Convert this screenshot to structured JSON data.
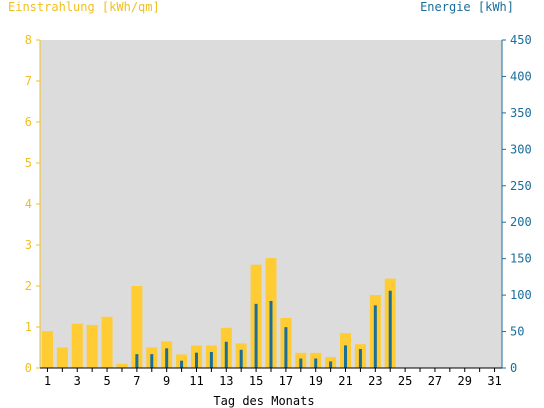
{
  "chart_data": {
    "type": "bar",
    "title_left": "Einstrahlung [kWh/qm]",
    "title_right": "Energie [kWh]",
    "xlabel": "Tag des Monats",
    "days": [
      1,
      2,
      3,
      4,
      5,
      6,
      7,
      8,
      9,
      10,
      11,
      12,
      13,
      14,
      15,
      16,
      17,
      18,
      19,
      20,
      21,
      22,
      23,
      24,
      25,
      26,
      27,
      28,
      29,
      30,
      31
    ],
    "x_tick_labels": [
      "1",
      "3",
      "5",
      "7",
      "9",
      "11",
      "13",
      "15",
      "17",
      "19",
      "21",
      "23",
      "25",
      "27",
      "29",
      "31"
    ],
    "y_left": {
      "min": 0,
      "max": 8,
      "ticks": [
        "0",
        "1",
        "2",
        "3",
        "4",
        "5",
        "6",
        "7",
        "8"
      ]
    },
    "y_right": {
      "min": 0,
      "max": 450,
      "ticks": [
        "0",
        "50",
        "100",
        "150",
        "200",
        "250",
        "300",
        "350",
        "400",
        "450"
      ]
    },
    "grid": false,
    "series": [
      {
        "name": "Einstrahlung [kWh/qm]",
        "axis": "left",
        "color": "#ffcc33",
        "values": [
          0.9,
          0.5,
          1.08,
          1.05,
          1.25,
          0.1,
          2.0,
          0.5,
          0.65,
          0.33,
          0.55,
          0.55,
          0.98,
          0.6,
          2.52,
          2.68,
          1.22,
          0.37,
          0.37,
          0.27,
          0.85,
          0.58,
          1.78,
          2.18,
          0,
          0,
          0,
          0,
          0,
          0,
          0
        ]
      },
      {
        "name": "Energie [kWh]",
        "axis": "right",
        "color": "#1a6e9a",
        "values": [
          0,
          0,
          0,
          0,
          0,
          0,
          19,
          19,
          27,
          10,
          21,
          22,
          36,
          25,
          88,
          92,
          56,
          13,
          13,
          9,
          31,
          26,
          86,
          106,
          0,
          0,
          0,
          0,
          0,
          0,
          0
        ]
      }
    ],
    "colors": {
      "plot_background": "#dcdcdc",
      "left_axis": "#f0c020",
      "right_axis": "#1a6e9a",
      "x_axis": "#000000"
    }
  }
}
